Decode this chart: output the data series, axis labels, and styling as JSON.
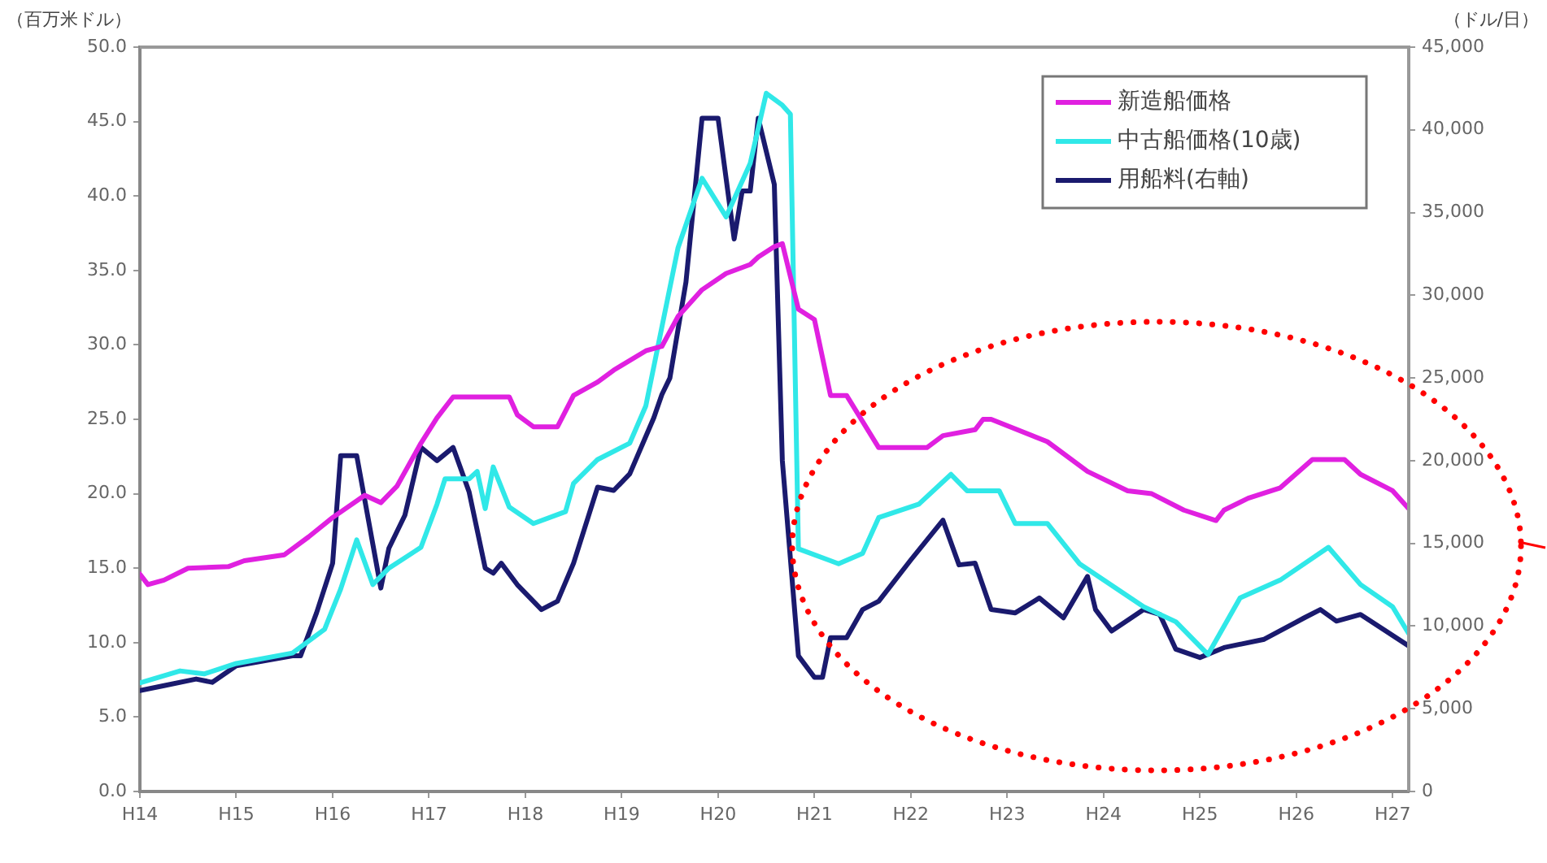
{
  "chart_data": {
    "type": "line",
    "ylabel": "（百万米ドル）",
    "y2label": "（ドル/日）",
    "xlim": [
      "2002-01",
      "2015-03"
    ],
    "xticks": [
      {
        "value": "2002-01",
        "label": "H14"
      },
      {
        "value": "2003-01",
        "label": "H15"
      },
      {
        "value": "2004-01",
        "label": "H16"
      },
      {
        "value": "2005-01",
        "label": "H17"
      },
      {
        "value": "2006-01",
        "label": "H18"
      },
      {
        "value": "2007-01",
        "label": "H19"
      },
      {
        "value": "2008-01",
        "label": "H20"
      },
      {
        "value": "2009-01",
        "label": "H21"
      },
      {
        "value": "2010-01",
        "label": "H22"
      },
      {
        "value": "2011-01",
        "label": "H23"
      },
      {
        "value": "2012-01",
        "label": "H24"
      },
      {
        "value": "2013-01",
        "label": "H25"
      },
      {
        "value": "2014-01",
        "label": "H26"
      },
      {
        "value": "2015-01",
        "label": "H27"
      }
    ],
    "ylim": [
      0,
      50
    ],
    "yticks": [
      {
        "value": 0,
        "label": "0.0"
      },
      {
        "value": 5,
        "label": "5.0"
      },
      {
        "value": 10,
        "label": "10.0"
      },
      {
        "value": 15,
        "label": "15.0"
      },
      {
        "value": 20,
        "label": "20.0"
      },
      {
        "value": 25,
        "label": "25.0"
      },
      {
        "value": 30,
        "label": "30.0"
      },
      {
        "value": 35,
        "label": "35.0"
      },
      {
        "value": 40,
        "label": "40.0"
      },
      {
        "value": 45,
        "label": "45.0"
      },
      {
        "value": 50,
        "label": "50.0"
      }
    ],
    "y2lim": [
      0,
      45000
    ],
    "y2ticks": [
      0,
      {
        "value": 5000,
        "label": "5,000"
      },
      {
        "value": 10000,
        "label": "10,000"
      },
      {
        "value": 15000,
        "label": "15,000"
      },
      {
        "value": 20000,
        "label": "20,000"
      },
      {
        "value": 25000,
        "label": "25,000"
      },
      {
        "value": 30000,
        "label": "30,000"
      },
      {
        "value": 35000,
        "label": "35,000"
      },
      {
        "value": 40000,
        "label": "40,000"
      },
      {
        "value": 45000,
        "label": "45,000"
      }
    ],
    "grid": false,
    "legend": "top right",
    "marker": "none",
    "line_style": "solid",
    "series": [
      {
        "name": "新造船価格",
        "color": "#e020e0",
        "x": [
          "2002-01",
          "2002-02",
          "2002-04",
          "2002-07",
          "2002-12",
          "2003-02",
          "2003-07",
          "2003-10",
          "2004-01",
          "2004-05",
          "2004-07",
          "2004-09",
          "2004-12",
          "2005-02",
          "2005-04",
          "2005-11",
          "2005-12",
          "2006-02",
          "2006-05",
          "2006-07",
          "2006-10",
          "2006-12",
          "2007-04",
          "2007-06",
          "2007-08",
          "2007-11",
          "2008-02",
          "2008-05",
          "2008-06",
          "2008-08",
          "2008-09",
          "2008-11",
          "2009-01",
          "2009-03",
          "2009-05",
          "2009-09",
          "2010-03",
          "2010-05",
          "2010-09",
          "2010-10",
          "2010-11",
          "2011-06",
          "2011-11",
          "2012-04",
          "2012-07",
          "2012-11",
          "2013-03",
          "2013-04",
          "2013-07",
          "2013-11",
          "2014-03",
          "2014-07",
          "2014-09",
          "2015-01",
          "2015-03"
        ],
        "values": [
          14.6,
          13.9,
          14.2,
          15.0,
          15.1,
          15.5,
          15.9,
          17.1,
          18.4,
          19.9,
          19.4,
          20.5,
          23.4,
          25.1,
          26.5,
          26.5,
          25.3,
          24.5,
          24.5,
          26.6,
          27.5,
          28.3,
          29.6,
          29.9,
          31.9,
          33.7,
          34.8,
          35.4,
          35.9,
          36.6,
          36.8,
          32.4,
          31.7,
          26.6,
          26.6,
          23.1,
          23.1,
          23.9,
          24.3,
          25.0,
          25.0,
          23.5,
          21.5,
          20.2,
          20.0,
          18.9,
          18.2,
          18.9,
          19.7,
          20.4,
          22.3,
          22.3,
          21.3,
          20.2,
          19.0
        ]
      },
      {
        "name": "中古船価格(10歳)",
        "color": "#30e8e8",
        "x": [
          "2002-01",
          "2002-06",
          "2002-09",
          "2003-01",
          "2003-08",
          "2003-12",
          "2004-02",
          "2004-04",
          "2004-06",
          "2004-08",
          "2004-12",
          "2005-02",
          "2005-03",
          "2005-06",
          "2005-07",
          "2005-08",
          "2005-09",
          "2005-11",
          "2006-02",
          "2006-06",
          "2006-07",
          "2006-10",
          "2007-02",
          "2007-04",
          "2007-08",
          "2007-11",
          "2008-02",
          "2008-05",
          "2008-07",
          "2008-09",
          "2008-10",
          "2008-11",
          "2009-04",
          "2009-07",
          "2009-09",
          "2010-02",
          "2010-06",
          "2010-08",
          "2010-12",
          "2011-02",
          "2011-06",
          "2011-10",
          "2012-06",
          "2012-10",
          "2013-02",
          "2013-06",
          "2013-11",
          "2014-05",
          "2014-09",
          "2015-01",
          "2015-03"
        ],
        "values": [
          7.3,
          8.1,
          7.9,
          8.6,
          9.3,
          10.9,
          13.6,
          16.9,
          13.9,
          15.0,
          16.4,
          19.3,
          21.0,
          21.0,
          21.5,
          19.0,
          21.8,
          19.1,
          18.0,
          18.8,
          20.7,
          22.3,
          23.4,
          25.9,
          36.5,
          41.2,
          38.6,
          42.2,
          46.9,
          46.1,
          45.5,
          16.3,
          15.3,
          16.0,
          18.4,
          19.3,
          21.3,
          20.2,
          20.2,
          18.0,
          18.0,
          15.3,
          12.4,
          11.4,
          9.2,
          13.0,
          14.2,
          16.4,
          13.9,
          12.4,
          10.6
        ]
      },
      {
        "name": "用船料(右軸)",
        "color": "#1a1a6e",
        "axis": "y2",
        "x": [
          "2002-01",
          "2002-04",
          "2002-08",
          "2002-10",
          "2003-01",
          "2003-08",
          "2003-09",
          "2003-11",
          "2004-01",
          "2004-02",
          "2004-04",
          "2004-07",
          "2004-08",
          "2004-10",
          "2004-12",
          "2005-02",
          "2005-04",
          "2005-06",
          "2005-08",
          "2005-09",
          "2005-10",
          "2005-12",
          "2006-03",
          "2006-05",
          "2006-07",
          "2006-10",
          "2006-12",
          "2007-02",
          "2007-05",
          "2007-06",
          "2007-07",
          "2007-09",
          "2007-11",
          "2008-01",
          "2008-03",
          "2008-04",
          "2008-05",
          "2008-06",
          "2008-08",
          "2008-09",
          "2008-11",
          "2009-01",
          "2009-02",
          "2009-03",
          "2009-05",
          "2009-07",
          "2009-09",
          "2010-01",
          "2010-05",
          "2010-07",
          "2010-09",
          "2010-11",
          "2011-02",
          "2011-05",
          "2011-08",
          "2011-11",
          "2011-12",
          "2012-02",
          "2012-06",
          "2012-08",
          "2012-10",
          "2013-01",
          "2013-04",
          "2013-09",
          "2014-02",
          "2014-04",
          "2014-06",
          "2014-09",
          "2015-03"
        ],
        "values": [
          6100,
          6400,
          6800,
          6600,
          7600,
          8200,
          8200,
          10800,
          13800,
          20300,
          20300,
          12300,
          14700,
          16700,
          20800,
          20000,
          20800,
          18100,
          13500,
          13200,
          13800,
          12500,
          11000,
          11500,
          13800,
          18400,
          18200,
          19200,
          22600,
          24000,
          25000,
          30800,
          40700,
          40700,
          33400,
          36300,
          36300,
          40700,
          36700,
          20000,
          8200,
          6900,
          6900,
          9300,
          9300,
          11000,
          11500,
          14000,
          16400,
          13700,
          13800,
          11000,
          10800,
          11700,
          10500,
          13000,
          11000,
          9700,
          11000,
          10700,
          8600,
          8100,
          8700,
          9200,
          10500,
          11000,
          10300,
          10700,
          8800
        ]
      }
    ]
  }
}
